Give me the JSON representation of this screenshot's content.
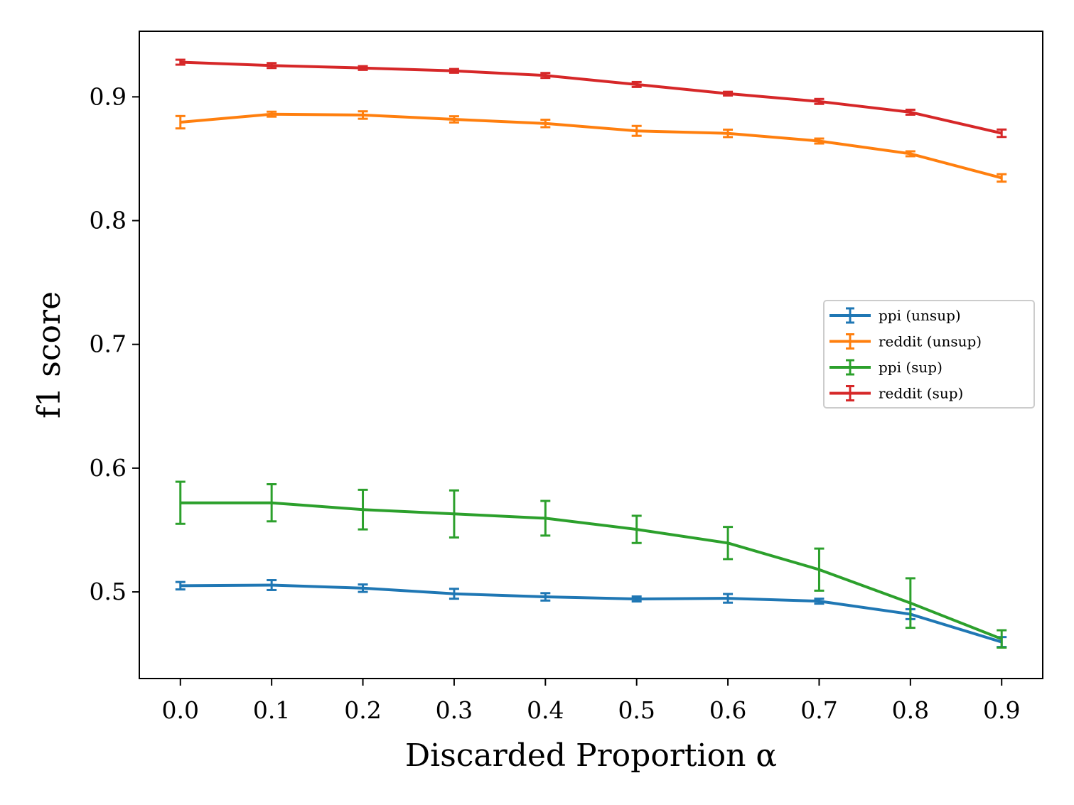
{
  "chart_data": {
    "type": "line",
    "title": "",
    "xlabel": "Discarded Proportion α",
    "ylabel": "f1 score",
    "xlim": [
      -0.045,
      0.945
    ],
    "ylim": [
      0.43,
      0.953
    ],
    "xticks": [
      0.0,
      0.1,
      0.2,
      0.3,
      0.4,
      0.5,
      0.6,
      0.7,
      0.8,
      0.9
    ],
    "xtick_labels": [
      "0.0",
      "0.1",
      "0.2",
      "0.3",
      "0.4",
      "0.5",
      "0.6",
      "0.7",
      "0.8",
      "0.9"
    ],
    "yticks": [
      0.5,
      0.6,
      0.7,
      0.8,
      0.9
    ],
    "ytick_labels": [
      "0.5",
      "0.6",
      "0.7",
      "0.8",
      "0.9"
    ],
    "grid": false,
    "legend_position": "center-right",
    "x": [
      0.0,
      0.1,
      0.2,
      0.3,
      0.4,
      0.5,
      0.6,
      0.7,
      0.8,
      0.9
    ],
    "series": [
      {
        "name": "ppi (unsup)",
        "color": "#1f77b4",
        "values": [
          0.505,
          0.5055,
          0.503,
          0.4985,
          0.496,
          0.4943,
          0.4948,
          0.4925,
          0.482,
          0.4595
        ],
        "errors": [
          0.003,
          0.004,
          0.003,
          0.004,
          0.003,
          0.002,
          0.0035,
          0.002,
          0.004,
          0.004
        ]
      },
      {
        "name": "reddit (unsup)",
        "color": "#ff7f0e",
        "values": [
          0.8795,
          0.886,
          0.8853,
          0.8818,
          0.8785,
          0.8725,
          0.8705,
          0.8643,
          0.854,
          0.8345
        ],
        "errors": [
          0.005,
          0.002,
          0.003,
          0.0025,
          0.003,
          0.004,
          0.003,
          0.002,
          0.002,
          0.003
        ]
      },
      {
        "name": "ppi (sup)",
        "color": "#2ca02c",
        "values": [
          0.572,
          0.572,
          0.5665,
          0.563,
          0.5595,
          0.5505,
          0.5395,
          0.518,
          0.491,
          0.462
        ],
        "errors": [
          0.017,
          0.015,
          0.016,
          0.019,
          0.014,
          0.011,
          0.013,
          0.017,
          0.02,
          0.007
        ]
      },
      {
        "name": "reddit (sup)",
        "color": "#d62728",
        "values": [
          0.928,
          0.9253,
          0.9233,
          0.921,
          0.9173,
          0.91,
          0.9026,
          0.8963,
          0.8876,
          0.8706
        ],
        "errors": [
          0.002,
          0.002,
          0.0015,
          0.0015,
          0.002,
          0.002,
          0.0015,
          0.002,
          0.002,
          0.003
        ]
      }
    ]
  }
}
